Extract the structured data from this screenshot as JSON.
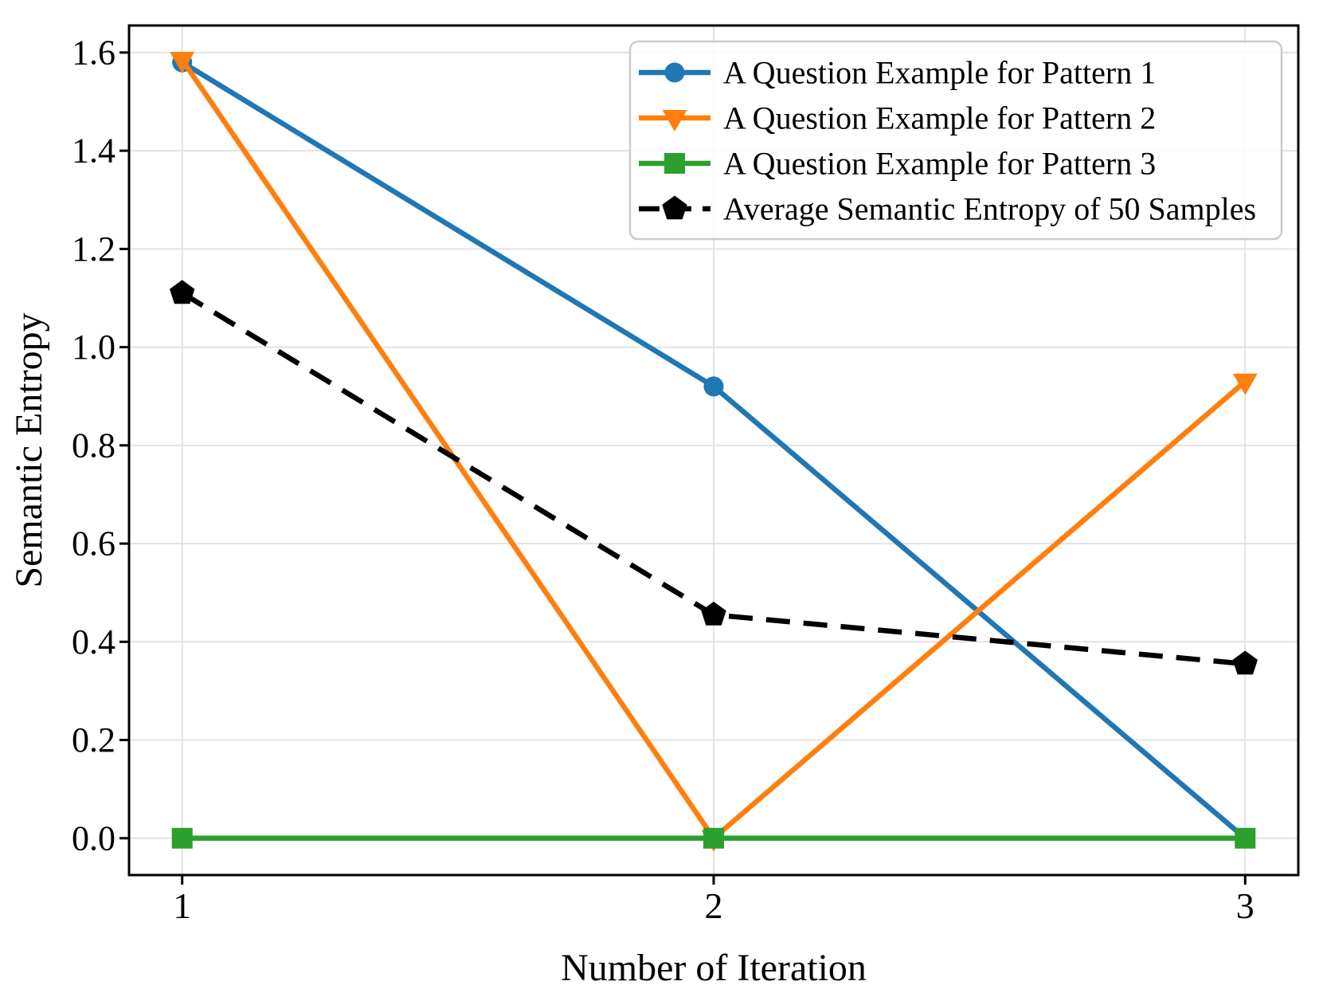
{
  "chart_data": {
    "type": "line",
    "title": "",
    "xlabel": "Number of Iteration",
    "ylabel": "Semantic Entropy",
    "x": [
      1,
      2,
      3
    ],
    "xlim": [
      0.9,
      3.1
    ],
    "ylim": [
      -0.075,
      1.655
    ],
    "grid": true,
    "legend_position": "upper right",
    "xticks": {
      "values": [
        1,
        2,
        3
      ],
      "labels": [
        "1",
        "2",
        "3"
      ]
    },
    "yticks": {
      "values": [
        0.0,
        0.2,
        0.4,
        0.6,
        0.8,
        1.0,
        1.2,
        1.4,
        1.6
      ],
      "labels": [
        "0.0",
        "0.2",
        "0.4",
        "0.6",
        "0.8",
        "1.0",
        "1.2",
        "1.4",
        "1.6"
      ]
    },
    "series": [
      {
        "name": "A Question Example for Pattern 1",
        "color": "#1f77b4",
        "marker": "circle",
        "line": "solid",
        "values": [
          1.58,
          0.92,
          0.0
        ]
      },
      {
        "name": "A Question Example for Pattern 2",
        "color": "#ff7f0e",
        "marker": "triangle-down",
        "line": "solid",
        "values": [
          1.585,
          0.0,
          0.93
        ]
      },
      {
        "name": "A Question Example for Pattern 3",
        "color": "#2ca02c",
        "marker": "square",
        "line": "solid",
        "values": [
          0.0,
          0.0,
          0.0
        ]
      },
      {
        "name": "Average Semantic Entropy of 50 Samples",
        "color": "#000000",
        "marker": "pentagon",
        "line": "dashed",
        "values": [
          1.11,
          0.455,
          0.355
        ]
      }
    ],
    "colors": {
      "background": "#ffffff",
      "grid": "#e3e3e3",
      "spine": "#000000",
      "tick": "#000000",
      "legend_border": "#cccccc",
      "legend_background": "rgba(255,255,255,0.85)"
    }
  }
}
